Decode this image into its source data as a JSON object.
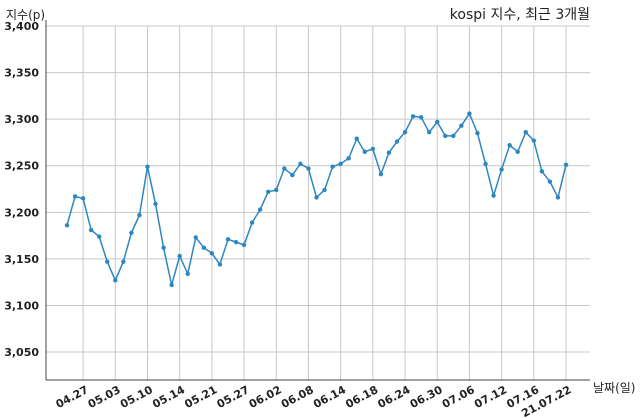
{
  "chart_data": {
    "type": "line",
    "title": "kospi 지수, 최근 3개월",
    "ylabel": "지수(p)",
    "xlabel": "날짜(일)",
    "ylim": [
      3020,
      3400
    ],
    "yticks": [
      3050,
      3100,
      3150,
      3200,
      3250,
      3300,
      3350,
      3400
    ],
    "ytick_labels": [
      "3,050",
      "3,100",
      "3,150",
      "3,200",
      "3,250",
      "3,300",
      "3,350",
      "3,400"
    ],
    "grid": true,
    "color": "#2e86c1",
    "xtick_labels": [
      "04.27",
      "05.03",
      "05.10",
      "05.14",
      "05.21",
      "05.27",
      "06.02",
      "06.08",
      "06.14",
      "06.18",
      "06.24",
      "06.30",
      "07.06",
      "07.12",
      "07.16",
      "21.07.22"
    ],
    "xtick_index": [
      2,
      6,
      10,
      14,
      18,
      22,
      26,
      30,
      34,
      38,
      42,
      46,
      50,
      54,
      58,
      62
    ],
    "values": [
      3186,
      3217,
      3215,
      3181,
      3174,
      3147,
      3127,
      3147,
      3178,
      3197,
      3249,
      3209,
      3162,
      3122,
      3153,
      3134,
      3173,
      3162,
      3156,
      3144,
      3171,
      3168,
      3165,
      3189,
      3203,
      3222,
      3224,
      3247,
      3240,
      3252,
      3247,
      3216,
      3224,
      3249,
      3252,
      3258,
      3279,
      3265,
      3268,
      3241,
      3264,
      3276,
      3286,
      3303,
      3302,
      3286,
      3297,
      3282,
      3282,
      3293,
      3306,
      3285,
      3252,
      3218,
      3246,
      3272,
      3265,
      3286,
      3277,
      3244,
      3233,
      3216,
      3251
    ]
  }
}
